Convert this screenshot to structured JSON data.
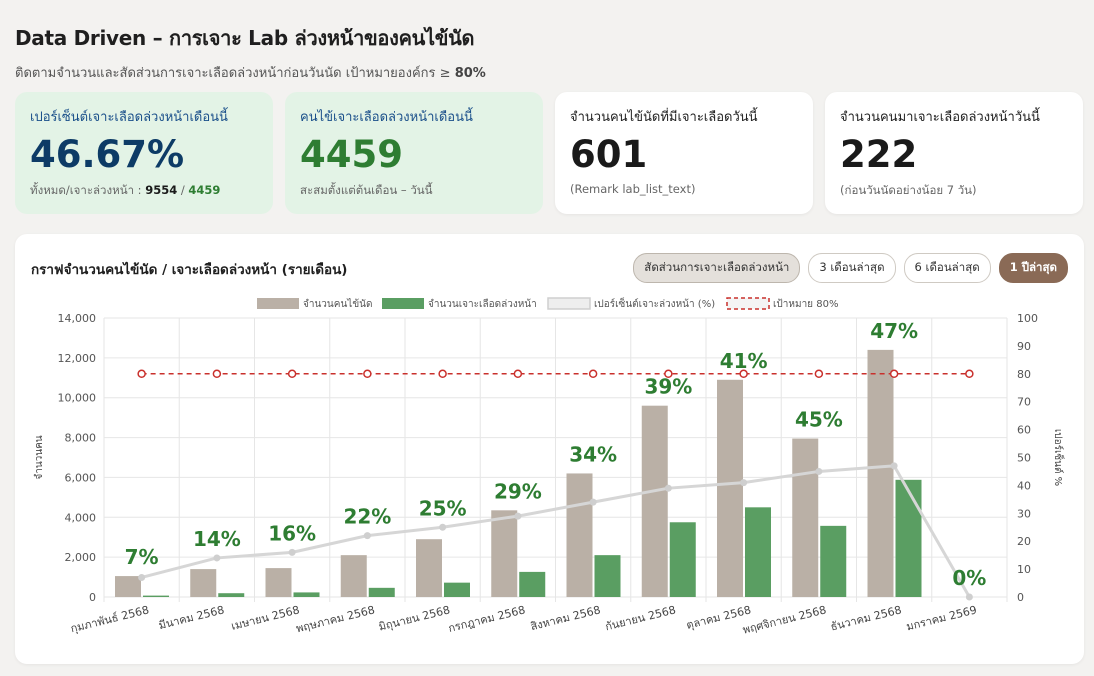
{
  "header": {
    "title": "Data Driven – การเจาะ Lab ล่วงหน้าของคนไข้นัด",
    "subtitle": "ติดตามจำนวนและสัดส่วนการเจาะเลือดล่วงหน้าก่อนวันนัด เป้าหมายองค์กร ≥",
    "subtitle_target": "80%"
  },
  "cards": [
    {
      "label": "เปอร์เซ็นต์เจาะเลือดล่วงหน้าเดือนนี้",
      "value": "46.67%",
      "sub_prefix": "ทั้งหมด/เจาะล่วงหน้า :",
      "sub_total": "9554",
      "sub_sep": "/",
      "sub_pre": "4459"
    },
    {
      "label": "คนไข้เจาะเลือดล่วงหน้าเดือนนี้",
      "value": "4459",
      "sub": "สะสมตั้งแต่ต้นเดือน – วันนี้"
    },
    {
      "label": "จำนวนคนไข้นัดที่มีเจาะเลือดวันนี้",
      "value": "601",
      "sub": "(Remark lab_list_text)"
    },
    {
      "label": "จำนวนคนมาเจาะเลือดล่วงหน้าวันนี้",
      "value": "222",
      "sub": "(ก่อนวันนัดอย่างน้อย 7 วัน)"
    }
  ],
  "colors": {
    "card1_value": "#0d3b66",
    "card2_value": "#2e7d32",
    "appt_bar": "#bab0a6",
    "pre_bar": "#5a9e62",
    "pct_line": "#d6d6d6",
    "target_line": "#c9302c",
    "pct_label": "#2e7d32"
  },
  "chart_panel": {
    "title": "กราฟจำนวนคนไข้นัด / เจาะเลือดล่วงหน้า (รายเดือน)",
    "buttons": [
      "สัดส่วนการเจาะเลือดล่วงหน้า",
      "3 เดือนล่าสุด",
      "6 เดือนล่าสุด",
      "1 ปีล่าสุด"
    ]
  },
  "chart_data": {
    "type": "bar",
    "categories": [
      "กุมภาพันธ์ 2568",
      "มีนาคม 2568",
      "เมษายน 2568",
      "พฤษภาคม 2568",
      "มิถุนายน 2568",
      "กรกฎาคม 2568",
      "สิงหาคม 2568",
      "กันยายน 2568",
      "ตุลาคม 2568",
      "พฤศจิกายน 2568",
      "ธันวาคม 2568",
      "มกราคม 2569"
    ],
    "series": [
      {
        "name": "จำนวนคนไข้นัด",
        "type": "bar",
        "axis": "left",
        "values": [
          1050,
          1400,
          1450,
          2100,
          2900,
          4350,
          6200,
          9600,
          10900,
          7950,
          12400,
          0
        ]
      },
      {
        "name": "จำนวนเจาะเลือดล่วงหน้า",
        "type": "bar",
        "axis": "left",
        "values": [
          70,
          190,
          230,
          460,
          720,
          1260,
          2100,
          3750,
          4500,
          3570,
          5880,
          0
        ]
      },
      {
        "name": "เปอร์เซ็นต์เจาะล่วงหน้า (%)",
        "type": "line",
        "axis": "right",
        "values": [
          7,
          14,
          16,
          22,
          25,
          29,
          34,
          39,
          41,
          45,
          47,
          0
        ]
      },
      {
        "name": "เป้าหมาย 80%",
        "type": "line",
        "axis": "right",
        "values": [
          80,
          80,
          80,
          80,
          80,
          80,
          80,
          80,
          80,
          80,
          80,
          80
        ]
      }
    ],
    "pct_labels": [
      "7%",
      "14%",
      "16%",
      "22%",
      "25%",
      "29%",
      "34%",
      "39%",
      "41%",
      "45%",
      "47%",
      "0%"
    ],
    "ylabel": "จำนวนคน",
    "y2label": "เปอร์เซ็นต์ %",
    "ylim": [
      0,
      14000
    ],
    "y_ticks": [
      "0",
      "2,000",
      "4,000",
      "6,000",
      "8,000",
      "10,000",
      "12,000",
      "14,000"
    ],
    "y2lim": [
      0,
      100
    ],
    "y2_ticks": [
      "0",
      "10",
      "20",
      "30",
      "40",
      "50",
      "60",
      "70",
      "80",
      "90",
      "100"
    ],
    "grid": true,
    "legend": "top"
  }
}
